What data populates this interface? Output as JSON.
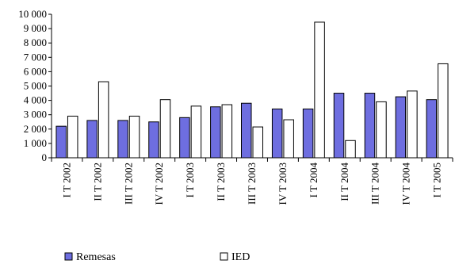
{
  "chart_data": {
    "type": "bar",
    "categories": [
      "I T 2002",
      "II T 2002",
      "III T 2002",
      "IV T 2002",
      "I T 2003",
      "II T 2003",
      "III T 2003",
      "IV T 2003",
      "I T 2004",
      "II T 2004",
      "III T 2004",
      "IV T 2004",
      "I T 2005"
    ],
    "series": [
      {
        "name": "Remesas",
        "color": "#6e6ee0",
        "values": [
          2200,
          2600,
          2600,
          2500,
          2800,
          3550,
          3800,
          3400,
          3400,
          4500,
          4500,
          4250,
          4050
        ]
      },
      {
        "name": "IED",
        "color": "#ffffff",
        "values": [
          2900,
          5300,
          2900,
          4050,
          3600,
          3700,
          2150,
          2650,
          9450,
          1200,
          3900,
          4650,
          6550
        ]
      }
    ],
    "yticks": [
      0,
      1000,
      2000,
      3000,
      4000,
      5000,
      6000,
      7000,
      8000,
      9000,
      10000
    ],
    "ytick_labels": [
      "0",
      "1 000",
      "2 000",
      "3 000",
      "4 000",
      "5 000",
      "6 000",
      "7 000",
      "8 000",
      "9 000",
      "10 000"
    ],
    "ylim": [
      0,
      10000
    ],
    "grid": false,
    "legend": "bottom"
  }
}
